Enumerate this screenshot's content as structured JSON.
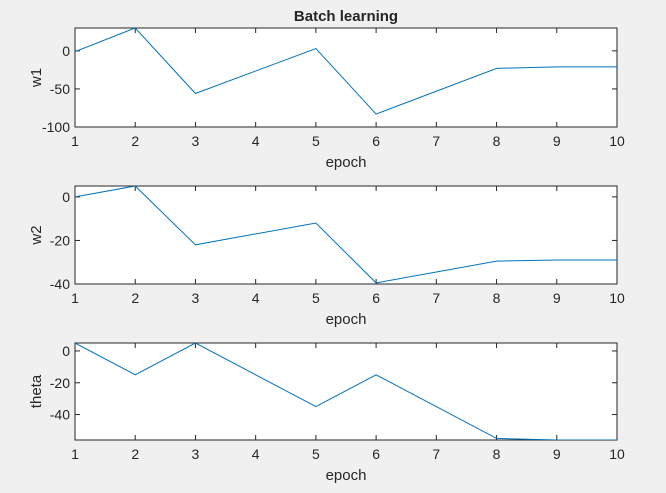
{
  "figure": {
    "background": "#f0f0f0",
    "line_color": "#0072bd",
    "axis_color": "#262626"
  },
  "chart_data": [
    {
      "type": "line",
      "title": "Batch learning",
      "xlabel": "epoch",
      "ylabel": "w1",
      "xlim": [
        1,
        10
      ],
      "ylim": [
        -100,
        30
      ],
      "xticks": [
        1,
        2,
        3,
        4,
        5,
        6,
        7,
        8,
        9,
        10
      ],
      "yticks": [
        0,
        -50,
        -100
      ],
      "grid": false,
      "series": [
        {
          "x": [
            1,
            2,
            3,
            5,
            6,
            8,
            9,
            10
          ],
          "y": [
            -1,
            30,
            -56,
            3,
            -83,
            -23,
            -21,
            -21
          ]
        }
      ]
    },
    {
      "type": "line",
      "title": "",
      "xlabel": "epoch",
      "ylabel": "w2",
      "xlim": [
        1,
        10
      ],
      "ylim": [
        -40,
        5
      ],
      "xticks": [
        1,
        2,
        3,
        4,
        5,
        6,
        7,
        8,
        9,
        10
      ],
      "yticks": [
        0,
        -20,
        -40
      ],
      "grid": false,
      "series": [
        {
          "x": [
            1,
            2,
            3,
            5,
            6,
            8,
            9,
            10
          ],
          "y": [
            0,
            5,
            -22,
            -12,
            -39.5,
            -29.5,
            -29,
            -29
          ]
        }
      ]
    },
    {
      "type": "line",
      "title": "",
      "xlabel": "epoch",
      "ylabel": "theta",
      "xlim": [
        1,
        10
      ],
      "ylim": [
        -56,
        5
      ],
      "xticks": [
        1,
        2,
        3,
        4,
        5,
        6,
        7,
        8,
        9,
        10
      ],
      "yticks": [
        0,
        -20,
        -40
      ],
      "grid": false,
      "series": [
        {
          "x": [
            1,
            2,
            3,
            5,
            6,
            8,
            9,
            10
          ],
          "y": [
            5,
            -15,
            5,
            -35,
            -15,
            -55,
            -56,
            -56
          ]
        }
      ]
    }
  ]
}
